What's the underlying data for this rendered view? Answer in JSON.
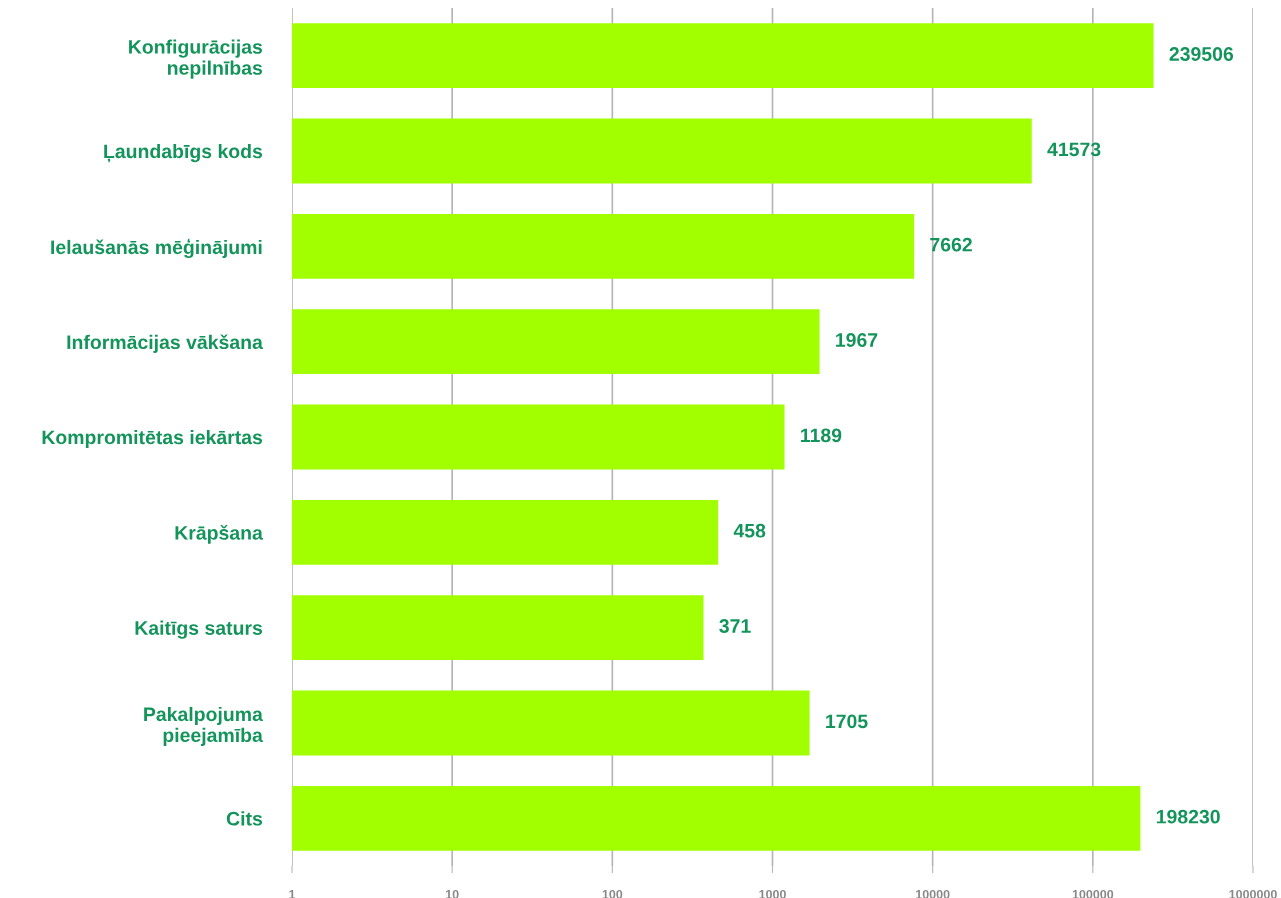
{
  "chart_data": {
    "type": "bar",
    "orientation": "horizontal",
    "log": "x",
    "categories": [
      "Konfigurācijas\nnepilnības",
      "Ļaundabīgs kods",
      "Ielaušanās mēģinājumi",
      "Informācijas vākšana",
      "Kompromitētas iekārtas",
      "Krāpšana",
      "Kaitīgs saturs",
      "Pakalpojuma\npieejamība",
      "Cits"
    ],
    "values": [
      239506,
      41573,
      7662,
      1967,
      1189,
      458,
      371,
      1705,
      198230
    ],
    "color": "#a2ff00",
    "xlim": [
      1,
      1000000
    ],
    "xticks": [
      1,
      10,
      100,
      1000,
      10000,
      100000,
      1000000
    ],
    "grid": "x",
    "data_labels": true
  }
}
